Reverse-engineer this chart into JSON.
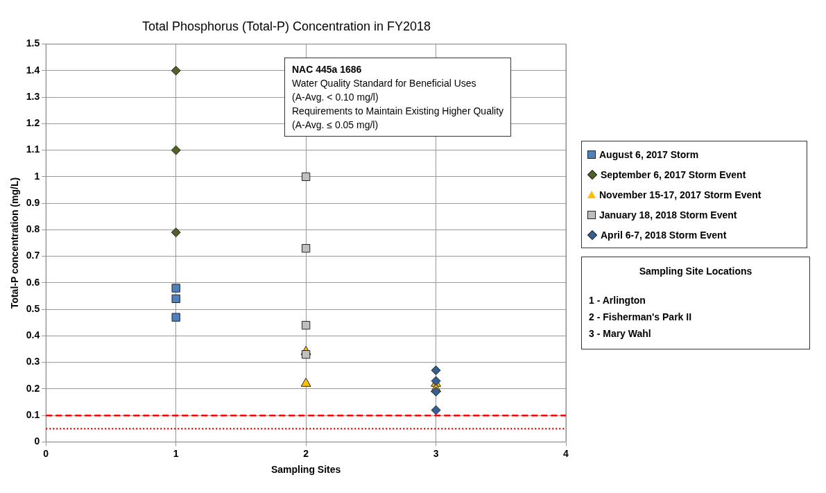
{
  "chart_data": {
    "type": "scatter",
    "title": "Total Phosphorus (Total-P) Concentration in FY2018",
    "xlabel": "Sampling Sites",
    "ylabel": "Total-P concentration (mg/L)",
    "xlim": [
      0,
      4
    ],
    "xticks": [
      0,
      1,
      2,
      3,
      4
    ],
    "ylim": [
      0,
      1.5
    ],
    "yticks": [
      0,
      0.1,
      0.2,
      0.3,
      0.4,
      0.5,
      0.6,
      0.7,
      0.8,
      0.9,
      1,
      1.1,
      1.2,
      1.3,
      1.4,
      1.5
    ],
    "grid": true,
    "legend": "right",
    "series": [
      {
        "name": "August 6, 2017 Storm",
        "color": "#4f81bd",
        "marker": "square",
        "x": [
          1,
          1,
          1
        ],
        "values": [
          0.58,
          0.54,
          0.47
        ]
      },
      {
        "name": "September 6, 2017 Storm Event",
        "color": "#4f6228",
        "marker": "diamond",
        "x": [
          1,
          1,
          1
        ],
        "values": [
          1.4,
          1.1,
          0.79
        ]
      },
      {
        "name": "November 15-17, 2017 Storm Event",
        "color": "#ffc000",
        "marker": "triangle",
        "x": [
          2,
          2,
          3,
          3
        ],
        "values": [
          0.34,
          0.22,
          0.22,
          0.2
        ]
      },
      {
        "name": "January 18, 2018 Storm Event",
        "color": "#bfbfbf",
        "marker": "square",
        "x": [
          2,
          2,
          2,
          2
        ],
        "values": [
          1.0,
          0.73,
          0.44,
          0.33
        ]
      },
      {
        "name": "April 6-7, 2018 Storm Event",
        "color": "#376092",
        "marker": "diamond",
        "x": [
          3,
          3,
          3,
          3
        ],
        "values": [
          0.27,
          0.23,
          0.19,
          0.12
        ]
      }
    ],
    "ref_lines": [
      {
        "axis": "y",
        "value": 0.1,
        "color": "#ff0000",
        "line_style": "dashed"
      },
      {
        "axis": "y",
        "value": 0.05,
        "color": "#ff0000",
        "line_style": "dotted"
      }
    ],
    "annotations": [
      "NAC 445a 1686\nWater Quality Standard for Beneficial Uses\n(A-Avg. < 0.10 mg/l)\nRequirements to Maintain Existing Higher Quality\n(A-Avg. ≤ 0.05 mg/l)",
      "Sampling Site Locations\n1 - Arlington\n2 - Fisherman's Park II\n3 - Mary Wahl"
    ]
  }
}
